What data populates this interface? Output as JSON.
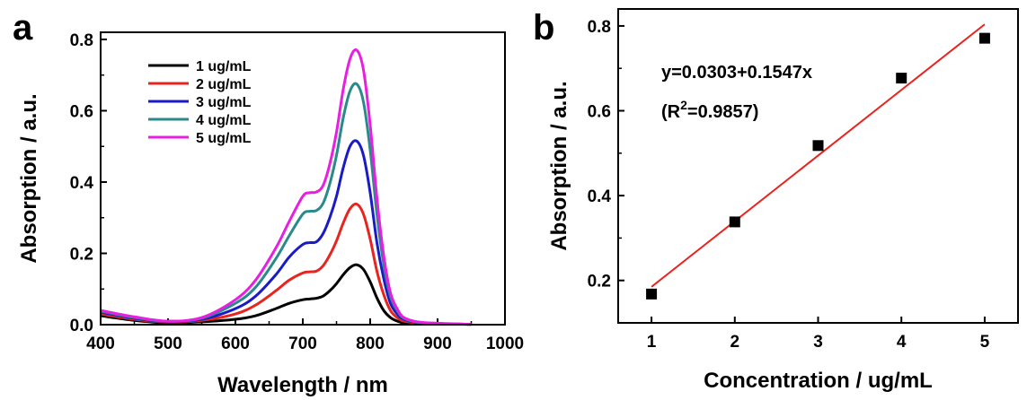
{
  "chart_data": [
    {
      "panel_label": "a",
      "type": "line",
      "xlabel": "Wavelength / nm",
      "ylabel": "Absorption / a.u.",
      "xlim": [
        400,
        1000
      ],
      "ylim": [
        0,
        0.82
      ],
      "xticks": [
        "400",
        "500",
        "600",
        "700",
        "800",
        "900",
        "1000"
      ],
      "yticks": [
        "0.0",
        "0.2",
        "0.4",
        "0.6",
        "0.8"
      ],
      "legend_position": "top-left",
      "x": [
        400,
        450,
        500,
        550,
        600,
        630,
        660,
        680,
        700,
        710,
        720,
        730,
        740,
        750,
        760,
        770,
        780,
        790,
        800,
        810,
        820,
        830,
        840,
        850,
        870,
        900,
        950
      ],
      "series": [
        {
          "name": "1 ug/mL",
          "color": "#000000",
          "values": [
            0.025,
            0.012,
            0.005,
            0.008,
            0.015,
            0.025,
            0.045,
            0.06,
            0.07,
            0.072,
            0.074,
            0.08,
            0.095,
            0.115,
            0.14,
            0.16,
            0.168,
            0.155,
            0.12,
            0.075,
            0.04,
            0.02,
            0.01,
            0.005,
            0.003,
            0.002,
            0.001
          ]
        },
        {
          "name": "2 ug/mL",
          "color": "#e8241f",
          "values": [
            0.03,
            0.015,
            0.007,
            0.012,
            0.03,
            0.055,
            0.095,
            0.125,
            0.145,
            0.148,
            0.15,
            0.165,
            0.195,
            0.235,
            0.285,
            0.325,
            0.338,
            0.31,
            0.24,
            0.15,
            0.085,
            0.04,
            0.02,
            0.01,
            0.005,
            0.002,
            0.001
          ]
        },
        {
          "name": "3 ug/mL",
          "color": "#1a1ac8",
          "values": [
            0.035,
            0.018,
            0.008,
            0.015,
            0.045,
            0.08,
            0.14,
            0.19,
            0.225,
            0.23,
            0.232,
            0.255,
            0.3,
            0.36,
            0.44,
            0.5,
            0.515,
            0.475,
            0.37,
            0.23,
            0.13,
            0.06,
            0.03,
            0.015,
            0.006,
            0.003,
            0.001
          ]
        },
        {
          "name": "4 ug/mL",
          "color": "#2a8a8a",
          "values": [
            0.038,
            0.02,
            0.009,
            0.018,
            0.06,
            0.105,
            0.185,
            0.25,
            0.31,
            0.318,
            0.32,
            0.34,
            0.395,
            0.475,
            0.58,
            0.655,
            0.675,
            0.625,
            0.49,
            0.31,
            0.17,
            0.08,
            0.04,
            0.018,
            0.007,
            0.003,
            0.001
          ]
        },
        {
          "name": "5 ug/mL",
          "color": "#e81ee0",
          "values": [
            0.04,
            0.022,
            0.01,
            0.02,
            0.07,
            0.125,
            0.215,
            0.29,
            0.36,
            0.37,
            0.372,
            0.39,
            0.45,
            0.54,
            0.66,
            0.745,
            0.77,
            0.715,
            0.56,
            0.355,
            0.195,
            0.09,
            0.045,
            0.02,
            0.008,
            0.004,
            0.001
          ]
        }
      ]
    },
    {
      "panel_label": "b",
      "type": "scatter",
      "xlabel": "Concentration / ug/mL",
      "ylabel": "Absorption / a.u.",
      "xlim": [
        0.6,
        5.4
      ],
      "ylim": [
        0.1,
        0.84
      ],
      "xticks": [
        "1",
        "2",
        "3",
        "4",
        "5"
      ],
      "yticks": [
        "0.2",
        "0.4",
        "0.6",
        "0.8"
      ],
      "x": [
        1,
        2,
        3,
        4,
        5
      ],
      "points": [
        0.168,
        0.338,
        0.518,
        0.677,
        0.771
      ],
      "marker_color": "#000000",
      "fit": {
        "intercept": 0.0303,
        "slope": 0.1547,
        "x_range": [
          1,
          5
        ],
        "color": "#e8241f"
      },
      "equation": "y=0.0303+0.1547x",
      "r2_open": "(R",
      "r2_sup": "2",
      "r2_close": "=0.9857)"
    }
  ]
}
